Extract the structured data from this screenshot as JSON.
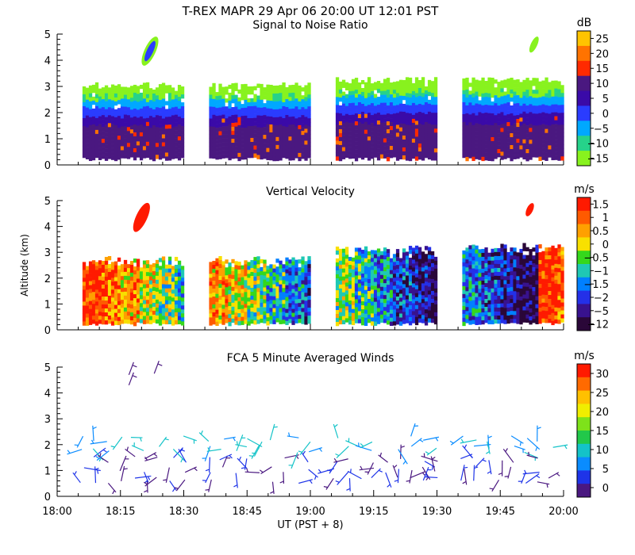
{
  "figure_title": "T-REX  MAPR 29 Apr 06  20:00 UT  12:01  PST",
  "chart_data": [
    {
      "type": "heatmap",
      "title": "Signal to Noise Ratio",
      "ylabel": "",
      "ylim": [
        0,
        5
      ],
      "yticks": [
        "0",
        "1",
        "2",
        "3",
        "4",
        "5"
      ],
      "xlim": [
        "18:00",
        "20:00"
      ],
      "colorbar": {
        "unit": "dB",
        "labels": [
          "25",
          "20",
          "15",
          "10",
          "5",
          "0",
          "−5",
          "−10",
          "−15"
        ],
        "colors": [
          "#ffc400",
          "#ff7300",
          "#ff2a00",
          "#4a1880",
          "#3a0aa8",
          "#2a3cff",
          "#00a8ff",
          "#26d28a",
          "#88f21e"
        ]
      },
      "segments": [
        {
          "start": "18:06",
          "end": "18:30",
          "top_km": 3.1,
          "bottom_km": 0.3
        },
        {
          "start": "18:36",
          "end": "19:00",
          "top_km": 3.1,
          "bottom_km": 0.3
        },
        {
          "start": "19:06",
          "end": "19:30",
          "top_km": 3.3,
          "bottom_km": 0.3
        },
        {
          "start": "19:36",
          "end": "20:00",
          "top_km": 3.3,
          "bottom_km": 0.3
        }
      ]
    },
    {
      "type": "heatmap",
      "title": "Vertical Velocity",
      "ylabel": "Altitude  (km)",
      "ylim": [
        0,
        5
      ],
      "yticks": [
        "0",
        "1",
        "2",
        "3",
        "4",
        "5"
      ],
      "xlim": [
        "18:00",
        "20:00"
      ],
      "colorbar": {
        "unit": "m/s",
        "labels": [
          "1.5",
          "1",
          "0.5",
          "0",
          "−0.5",
          "−1",
          "−1.5",
          "−2",
          "−5",
          "−12"
        ],
        "colors": [
          "#ff1a00",
          "#ff5a00",
          "#ffa000",
          "#f8e000",
          "#35d71c",
          "#1fc8b4",
          "#0080ff",
          "#2430e8",
          "#38128e",
          "#2a0738"
        ]
      },
      "segments": [
        {
          "start": "18:06",
          "end": "18:30",
          "top_km": 2.8,
          "bottom_km": 0.3
        },
        {
          "start": "18:36",
          "end": "19:00",
          "top_km": 2.8,
          "bottom_km": 0.3
        },
        {
          "start": "19:06",
          "end": "19:30",
          "top_km": 3.2,
          "bottom_km": 0.3
        },
        {
          "start": "19:36",
          "end": "20:00",
          "top_km": 3.3,
          "bottom_km": 0.3
        }
      ]
    },
    {
      "type": "scatter",
      "title": "FCA 5 Minute Averaged Winds",
      "ylabel": "",
      "ylim": [
        0,
        5
      ],
      "yticks": [
        "0",
        "1",
        "2",
        "3",
        "4",
        "5"
      ],
      "xlabel": "UT  (PST + 8)",
      "xlim": [
        "18:00",
        "20:00"
      ],
      "xticks": [
        "18:00",
        "18:15",
        "18:30",
        "18:45",
        "19:00",
        "19:15",
        "19:30",
        "19:45",
        "20:00"
      ],
      "colorbar": {
        "unit": "m/s",
        "labels": [
          "30",
          "25",
          "20",
          "15",
          "10",
          "5",
          "0"
        ],
        "colors": [
          "#ff1a00",
          "#ff6a00",
          "#ffc000",
          "#f0ee00",
          "#7ee21a",
          "#22c84a",
          "#14c3c8",
          "#0a8cff",
          "#1e34e8",
          "#4a1880"
        ]
      },
      "wind_altitudes_km": [
        0.6,
        1.0,
        1.4,
        1.8,
        2.2
      ]
    }
  ]
}
